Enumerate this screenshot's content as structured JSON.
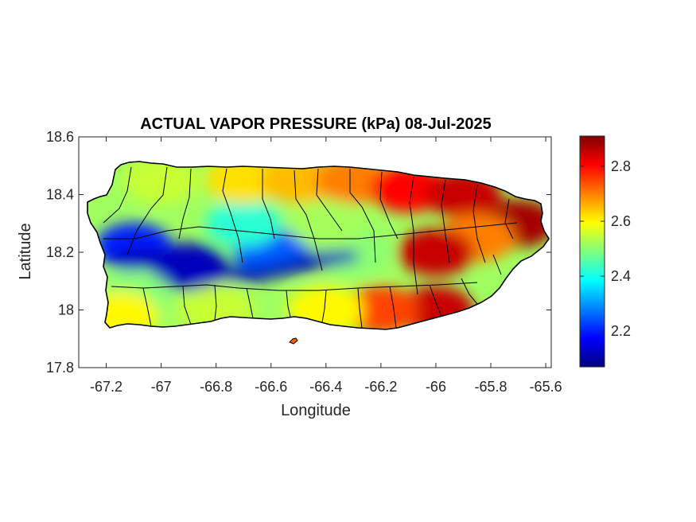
{
  "chart_data": {
    "type": "heatmap",
    "title": "ACTUAL VAPOR PRESSURE (kPa) 08-Jul-2025",
    "xlabel": "Longitude",
    "ylabel": "Latitude",
    "xlim": [
      -67.3,
      -65.58
    ],
    "ylim": [
      17.8,
      18.6
    ],
    "xticks": [
      -67.2,
      -67.0,
      -66.8,
      -66.6,
      -66.4,
      -66.2,
      -66.0,
      -65.8,
      -65.6
    ],
    "xtick_labels": [
      "-67.2",
      "-67",
      "-66.8",
      "-66.6",
      "-66.4",
      "-66.2",
      "-66",
      "-65.8",
      "-65.6"
    ],
    "yticks": [
      17.8,
      18.0,
      18.2,
      18.4,
      18.6
    ],
    "ytick_labels": [
      "17.8",
      "18",
      "18.2",
      "18.4",
      "18.6"
    ],
    "colorbar": {
      "colormap": "jet",
      "range": [
        2.07,
        2.91
      ],
      "ticks": [
        2.2,
        2.4,
        2.6,
        2.8
      ],
      "tick_labels": [
        "2.2",
        "2.4",
        "2.6",
        "2.8"
      ]
    },
    "region": "Puerto Rico",
    "grid": false,
    "field_description_points": [
      {
        "lon": -66.9,
        "lat": 18.15,
        "value": 2.12
      },
      {
        "lon": -66.6,
        "lat": 18.2,
        "value": 2.25
      },
      {
        "lon": -67.1,
        "lat": 18.22,
        "value": 2.2
      },
      {
        "lon": -66.7,
        "lat": 18.3,
        "value": 2.42
      },
      {
        "lon": -67.0,
        "lat": 18.45,
        "value": 2.55
      },
      {
        "lon": -66.7,
        "lat": 18.45,
        "value": 2.62
      },
      {
        "lon": -66.5,
        "lat": 18.45,
        "value": 2.65
      },
      {
        "lon": -66.3,
        "lat": 18.45,
        "value": 2.7
      },
      {
        "lon": -66.1,
        "lat": 18.42,
        "value": 2.8
      },
      {
        "lon": -65.9,
        "lat": 18.4,
        "value": 2.85
      },
      {
        "lon": -65.7,
        "lat": 18.3,
        "value": 2.88
      },
      {
        "lon": -65.85,
        "lat": 18.25,
        "value": 2.7
      },
      {
        "lon": -66.0,
        "lat": 18.2,
        "value": 2.85
      },
      {
        "lon": -66.0,
        "lat": 18.0,
        "value": 2.85
      },
      {
        "lon": -66.2,
        "lat": 18.0,
        "value": 2.75
      },
      {
        "lon": -66.4,
        "lat": 18.0,
        "value": 2.6
      },
      {
        "lon": -66.8,
        "lat": 18.0,
        "value": 2.55
      },
      {
        "lon": -67.1,
        "lat": 18.05,
        "value": 2.5
      },
      {
        "lon": -67.15,
        "lat": 17.98,
        "value": 2.6
      },
      {
        "lon": -66.3,
        "lat": 18.2,
        "value": 2.5
      },
      {
        "lon": -66.4,
        "lat": 18.3,
        "value": 2.52
      }
    ]
  },
  "colors": {
    "jet": [
      "#00007f",
      "#0000ff",
      "#007fff",
      "#00ffff",
      "#7fff7f",
      "#ffff00",
      "#ff7f00",
      "#ff0000",
      "#7f0000"
    ],
    "axis": "#262626",
    "boundary": "#000000"
  }
}
